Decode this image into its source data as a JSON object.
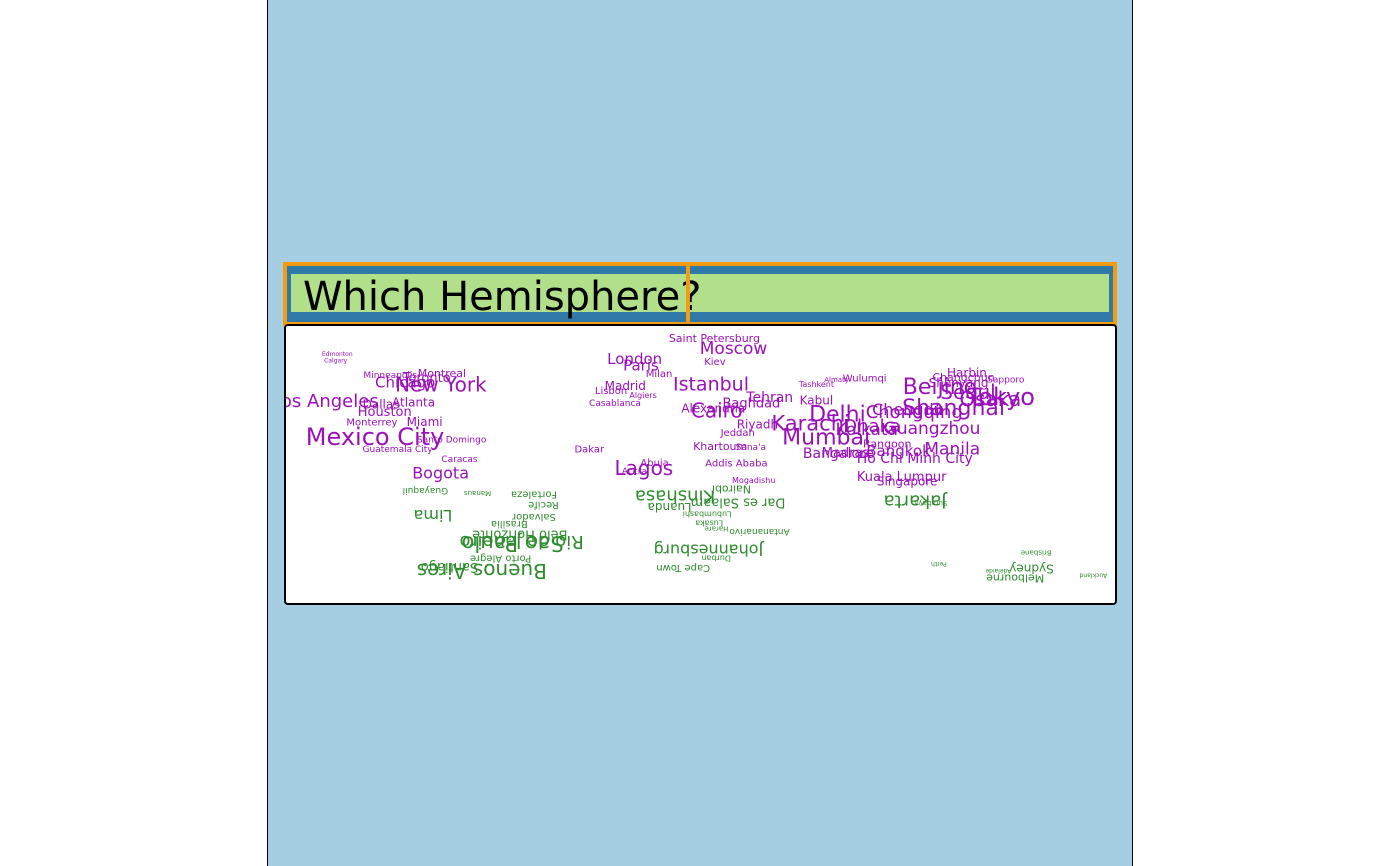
{
  "title": "Which Hemisphere?",
  "colors": {
    "background": "#a6cee3",
    "strip": "#2f79a8",
    "strip_border": "#f39c12",
    "title_fill": "#b2df8a",
    "north": "#9b11b9",
    "south": "#2e8b2e"
  },
  "chart_data": {
    "type": "scatter",
    "title": "Which Hemisphere?",
    "xlabel": "",
    "ylabel": "",
    "xlim": [
      -130,
      180
    ],
    "ylim": [
      -45,
      62
    ],
    "grid": false,
    "series": [
      {
        "group": "north",
        "color": "#9b11b9",
        "points": [
          {
            "name": "Saint Petersburg",
            "lon": 30.3,
            "lat": 59.9,
            "size": 11
          },
          {
            "name": "Moscow",
            "lon": 37.6,
            "lat": 55.8,
            "size": 17
          },
          {
            "name": "London",
            "lon": -0.1,
            "lat": 51.5,
            "size": 15
          },
          {
            "name": "Paris",
            "lon": 2.3,
            "lat": 48.9,
            "size": 15
          },
          {
            "name": "Madrid",
            "lon": -3.7,
            "lat": 40.4,
            "size": 12
          },
          {
            "name": "Lisbon",
            "lon": -9.1,
            "lat": 38.7,
            "size": 10
          },
          {
            "name": "Istanbul",
            "lon": 29.0,
            "lat": 41.0,
            "size": 19
          },
          {
            "name": "Kiev",
            "lon": 30.5,
            "lat": 50.5,
            "size": 10
          },
          {
            "name": "Milan",
            "lon": 9.2,
            "lat": 45.5,
            "size": 10
          },
          {
            "name": "Algiers",
            "lon": 3.1,
            "lat": 36.8,
            "size": 8
          },
          {
            "name": "Casablanca",
            "lon": -7.6,
            "lat": 33.6,
            "size": 9
          },
          {
            "name": "Cairo",
            "lon": 31.2,
            "lat": 30.0,
            "size": 20
          },
          {
            "name": "Alexandria",
            "lon": 29.9,
            "lat": 31.2,
            "size": 12
          },
          {
            "name": "Baghdad",
            "lon": 44.4,
            "lat": 33.3,
            "size": 13
          },
          {
            "name": "Tehran",
            "lon": 51.4,
            "lat": 35.7,
            "size": 14
          },
          {
            "name": "Riyadh",
            "lon": 46.7,
            "lat": 24.7,
            "size": 12
          },
          {
            "name": "Jeddah",
            "lon": 39.2,
            "lat": 21.5,
            "size": 10
          },
          {
            "name": "Khartoum",
            "lon": 32.5,
            "lat": 15.6,
            "size": 11
          },
          {
            "name": "Sana'a",
            "lon": 44.2,
            "lat": 15.4,
            "size": 9
          },
          {
            "name": "Addis Ababa",
            "lon": 38.7,
            "lat": 9.0,
            "size": 10
          },
          {
            "name": "Mogadishu",
            "lon": 45.3,
            "lat": 2.0,
            "size": 8
          },
          {
            "name": "Dakar",
            "lon": -17.4,
            "lat": 14.7,
            "size": 10
          },
          {
            "name": "Abuja",
            "lon": 7.5,
            "lat": 9.1,
            "size": 10
          },
          {
            "name": "Lagos",
            "lon": 3.4,
            "lat": 6.5,
            "size": 20
          },
          {
            "name": "Accra",
            "lon": -0.2,
            "lat": 5.6,
            "size": 9
          },
          {
            "name": "Kabul",
            "lon": 69.2,
            "lat": 34.5,
            "size": 12
          },
          {
            "name": "Tashkent",
            "lon": 69.2,
            "lat": 41.3,
            "size": 8
          },
          {
            "name": "Almaty",
            "lon": 76.9,
            "lat": 43.2,
            "size": 7
          },
          {
            "name": "Karachi",
            "lon": 67.0,
            "lat": 24.9,
            "size": 21
          },
          {
            "name": "Delhi",
            "lon": 77.2,
            "lat": 28.6,
            "size": 22
          },
          {
            "name": "Mumbai",
            "lon": 72.9,
            "lat": 19.1,
            "size": 22
          },
          {
            "name": "Bangalore",
            "lon": 77.6,
            "lat": 12.9,
            "size": 14
          },
          {
            "name": "Madras",
            "lon": 80.3,
            "lat": 13.1,
            "size": 13
          },
          {
            "name": "Kolkata",
            "lon": 88.4,
            "lat": 22.6,
            "size": 17
          },
          {
            "name": "Dhaka",
            "lon": 90.4,
            "lat": 23.8,
            "size": 18
          },
          {
            "name": "Rangoon",
            "lon": 96.2,
            "lat": 16.8,
            "size": 11
          },
          {
            "name": "Bangkok",
            "lon": 100.5,
            "lat": 13.8,
            "size": 15
          },
          {
            "name": "Ho Chi Minh City",
            "lon": 106.7,
            "lat": 10.8,
            "size": 14
          },
          {
            "name": "Kuala Lumpur",
            "lon": 101.7,
            "lat": 3.1,
            "size": 13
          },
          {
            "name": "Singapore",
            "lon": 103.8,
            "lat": 1.4,
            "size": 12
          },
          {
            "name": "Manila",
            "lon": 121.0,
            "lat": 14.6,
            "size": 17
          },
          {
            "name": "Wulumqi",
            "lon": 87.6,
            "lat": 43.8,
            "size": 10
          },
          {
            "name": "Chongqing",
            "lon": 106.5,
            "lat": 29.6,
            "size": 18
          },
          {
            "name": "Chengdu",
            "lon": 104.1,
            "lat": 30.7,
            "size": 16
          },
          {
            "name": "Guangzhou",
            "lon": 113.3,
            "lat": 23.1,
            "size": 17
          },
          {
            "name": "Shanghai",
            "lon": 121.5,
            "lat": 31.2,
            "size": 22
          },
          {
            "name": "Beijing",
            "lon": 116.4,
            "lat": 39.9,
            "size": 22
          },
          {
            "name": "Harbin",
            "lon": 126.6,
            "lat": 45.8,
            "size": 12
          },
          {
            "name": "Changchun",
            "lon": 125.3,
            "lat": 43.9,
            "size": 11
          },
          {
            "name": "Shenyang",
            "lon": 123.4,
            "lat": 41.8,
            "size": 12
          },
          {
            "name": "Seoul",
            "lon": 127.0,
            "lat": 37.6,
            "size": 20
          },
          {
            "name": "Osaka",
            "lon": 135.5,
            "lat": 34.7,
            "size": 20
          },
          {
            "name": "Tokyo",
            "lon": 139.7,
            "lat": 35.7,
            "size": 24
          },
          {
            "name": "Sapporo",
            "lon": 141.4,
            "lat": 43.1,
            "size": 9
          },
          {
            "name": "Montreal",
            "lon": -73.6,
            "lat": 45.5,
            "size": 11
          },
          {
            "name": "Toronto",
            "lon": -79.4,
            "lat": 43.7,
            "size": 13
          },
          {
            "name": "Chicago",
            "lon": -87.6,
            "lat": 41.9,
            "size": 15
          },
          {
            "name": "New York",
            "lon": -74.0,
            "lat": 40.7,
            "size": 20
          },
          {
            "name": "Los Angeles",
            "lon": -118.2,
            "lat": 34.1,
            "size": 18
          },
          {
            "name": "Dallas",
            "lon": -96.8,
            "lat": 32.8,
            "size": 12
          },
          {
            "name": "Atlanta",
            "lon": -84.4,
            "lat": 33.7,
            "size": 12
          },
          {
            "name": "Houston",
            "lon": -95.4,
            "lat": 29.8,
            "size": 13
          },
          {
            "name": "Miami",
            "lon": -80.2,
            "lat": 25.8,
            "size": 12
          },
          {
            "name": "Monterrey",
            "lon": -100.3,
            "lat": 25.7,
            "size": 10
          },
          {
            "name": "Mexico City",
            "lon": -99.1,
            "lat": 19.4,
            "size": 24
          },
          {
            "name": "Guatemala City",
            "lon": -90.5,
            "lat": 14.6,
            "size": 9
          },
          {
            "name": "Santo Domingo",
            "lon": -69.9,
            "lat": 18.5,
            "size": 9
          },
          {
            "name": "Bogota",
            "lon": -74.1,
            "lat": 4.7,
            "size": 16
          },
          {
            "name": "Caracas",
            "lon": -66.9,
            "lat": 10.5,
            "size": 9
          },
          {
            "name": "Minneapolis",
            "lon": -93.3,
            "lat": 45.0,
            "size": 9
          },
          {
            "name": "Edmonton",
            "lon": -113.5,
            "lat": 53.5,
            "size": 6
          },
          {
            "name": "Calgary",
            "lon": -114.1,
            "lat": 51.0,
            "size": 6
          }
        ]
      },
      {
        "group": "south",
        "color": "#2e8b2e",
        "points": [
          {
            "name": "Lima",
            "lon": -77.0,
            "lat": -12.0,
            "size": 16
          },
          {
            "name": "Guayaquil",
            "lon": -79.9,
            "lat": -2.2,
            "size": 9
          },
          {
            "name": "Manaus",
            "lon": -60.0,
            "lat": -3.1,
            "size": 7
          },
          {
            "name": "Fortaleza",
            "lon": -38.5,
            "lat": -3.7,
            "size": 10
          },
          {
            "name": "Recife",
            "lon": -34.9,
            "lat": -8.1,
            "size": 10
          },
          {
            "name": "Salvador",
            "lon": -38.5,
            "lat": -13.0,
            "size": 10
          },
          {
            "name": "Brasilia",
            "lon": -47.9,
            "lat": -15.8,
            "size": 10
          },
          {
            "name": "Belo Horizonte",
            "lon": -43.9,
            "lat": -19.9,
            "size": 13
          },
          {
            "name": "Rio de Janeiro",
            "lon": -43.2,
            "lat": -22.9,
            "size": 18
          },
          {
            "name": "Sao Paulo",
            "lon": -46.6,
            "lat": -23.5,
            "size": 21
          },
          {
            "name": "Porto Alegre",
            "lon": -51.2,
            "lat": -30.0,
            "size": 10
          },
          {
            "name": "Santiago",
            "lon": -70.7,
            "lat": -33.4,
            "size": 13
          },
          {
            "name": "Buenos Aires",
            "lon": -58.4,
            "lat": -34.6,
            "size": 20
          },
          {
            "name": "Kinshasa",
            "lon": 15.3,
            "lat": -4.3,
            "size": 18
          },
          {
            "name": "Luanda",
            "lon": 13.2,
            "lat": -8.8,
            "size": 12
          },
          {
            "name": "Nairobi",
            "lon": 36.8,
            "lat": -1.3,
            "size": 11
          },
          {
            "name": "Dar es Salaam",
            "lon": 39.3,
            "lat": -6.8,
            "size": 13
          },
          {
            "name": "Lubumbashi",
            "lon": 27.5,
            "lat": -11.7,
            "size": 8
          },
          {
            "name": "Lusaka",
            "lon": 28.3,
            "lat": -15.4,
            "size": 8
          },
          {
            "name": "Harare",
            "lon": 31.1,
            "lat": -17.8,
            "size": 7
          },
          {
            "name": "Antananarivo",
            "lon": 47.5,
            "lat": -18.9,
            "size": 9
          },
          {
            "name": "Johannesburg",
            "lon": 28.0,
            "lat": -26.2,
            "size": 16
          },
          {
            "name": "Durban",
            "lon": 31.0,
            "lat": -29.9,
            "size": 8
          },
          {
            "name": "Cape Town",
            "lon": 18.4,
            "lat": -33.9,
            "size": 10
          },
          {
            "name": "Jakarta",
            "lon": 106.8,
            "lat": -6.2,
            "size": 18
          },
          {
            "name": "Surabaya",
            "lon": 112.8,
            "lat": -7.3,
            "size": 7
          },
          {
            "name": "Perth",
            "lon": 115.9,
            "lat": -32.0,
            "size": 6
          },
          {
            "name": "Brisbane",
            "lon": 153.0,
            "lat": -27.5,
            "size": 7
          },
          {
            "name": "Sydney",
            "lon": 151.2,
            "lat": -33.9,
            "size": 12
          },
          {
            "name": "Melbourne",
            "lon": 145.0,
            "lat": -37.8,
            "size": 11
          },
          {
            "name": "Adelaide",
            "lon": 138.6,
            "lat": -34.9,
            "size": 6
          },
          {
            "name": "Auckland",
            "lon": 174.8,
            "lat": -36.8,
            "size": 6
          }
        ]
      }
    ]
  }
}
